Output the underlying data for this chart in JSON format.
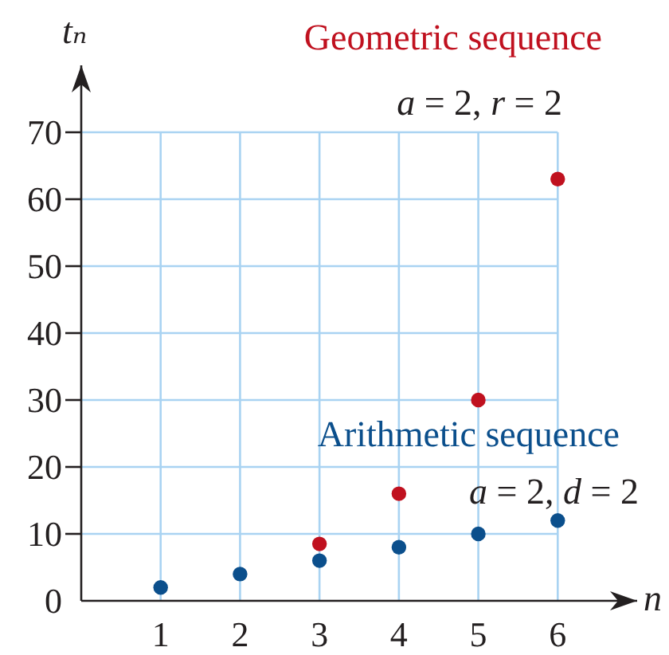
{
  "chart_data": {
    "type": "scatter",
    "xlabel": "n",
    "ylabel": "tₙ",
    "x": [
      1,
      2,
      3,
      4,
      5,
      6
    ],
    "xlim": [
      0,
      7
    ],
    "xticks": [
      1,
      2,
      3,
      4,
      5,
      6
    ],
    "ylim": [
      0,
      80
    ],
    "yticks": [
      0,
      10,
      20,
      30,
      40,
      50,
      60,
      70
    ],
    "grid": true,
    "marker": "circle",
    "series": [
      {
        "name": "Geometric sequence",
        "color": "#c0111f",
        "values": [
          null,
          null,
          8.5,
          16,
          30,
          63
        ]
      },
      {
        "name": "Arithmetic sequence",
        "color": "#0b4f8c",
        "values": [
          2,
          4,
          6,
          8,
          10,
          12
        ]
      }
    ],
    "annotations": [
      "a = 2, r = 2",
      "a = 2, d = 2"
    ]
  }
}
